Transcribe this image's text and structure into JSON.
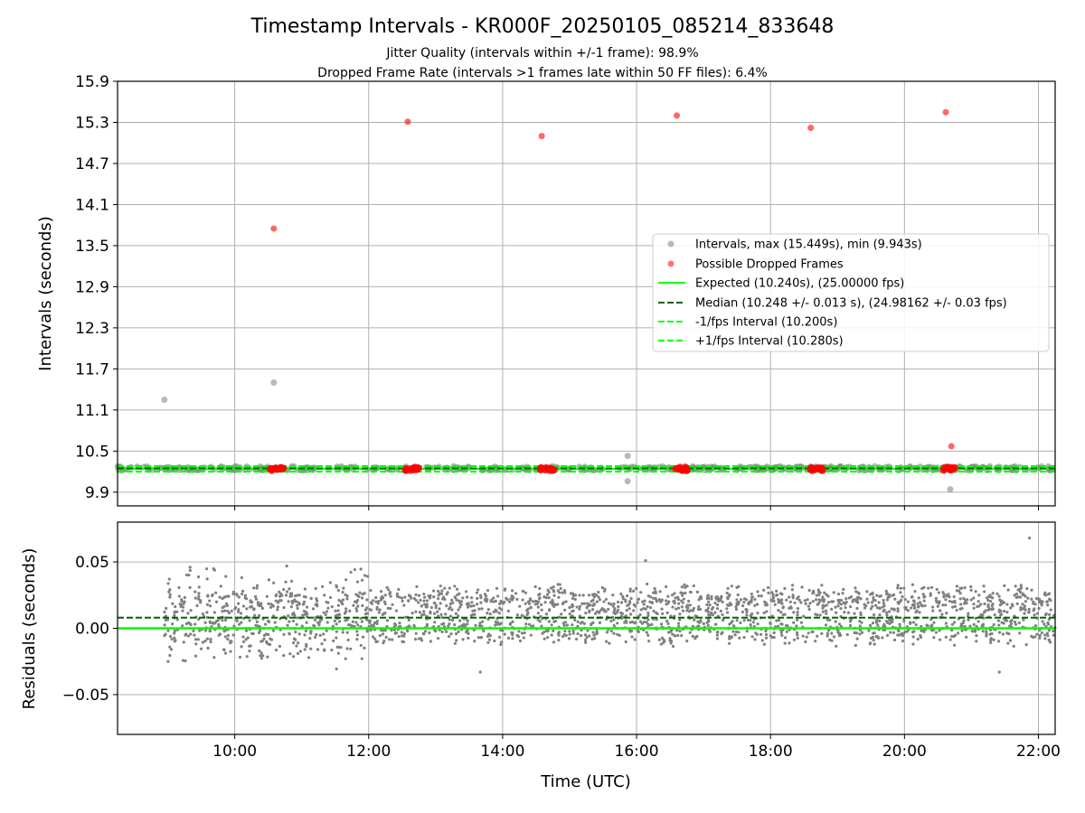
{
  "title": "Timestamp Intervals - KR000F_20250105_085214_833648",
  "subtitle_lines": [
    "Jitter Quality (intervals within +/-1 frame): 98.9%",
    "Dropped Frame Rate (intervals >1 frames late within 50 FF files): 6.4%"
  ],
  "colors": {
    "interval_points": "#808080",
    "dropped_points": "#ff0000",
    "expected_line": "#00ff00",
    "median_line": "#006400",
    "band_lines": "#00ff00",
    "grid": "#b0b0b0"
  },
  "chart_data": [
    {
      "type": "scatter",
      "ylabel": "Intervals (seconds)",
      "xlabel": "",
      "x_unit": "time (UTC)",
      "xlim": [
        "08:15",
        "22:15"
      ],
      "ylim": [
        9.7,
        15.9
      ],
      "y_ticks": [
        "15.9",
        "15.3",
        "14.7",
        "14.1",
        "13.5",
        "12.9",
        "12.3",
        "11.7",
        "11.1",
        "10.5",
        "9.9"
      ],
      "grid": true,
      "legend_position": "center-right",
      "legend": [
        "Intervals, max (15.449s), min (9.943s)",
        "Possible Dropped Frames",
        "Expected (10.240s), (25.00000 fps)",
        "Median (10.248 +/- 0.013 s), (24.98162 +/- 0.03 fps)",
        "-1/fps Interval (10.200s)",
        "+1/fps Interval (10.280s)"
      ],
      "series": [
        {
          "name": "Intervals, max (15.449s), min (9.943s)",
          "kind": "points",
          "x": [
            "08:57",
            "10:35",
            "15:52",
            "15:52",
            "20:41"
          ],
          "y": [
            11.25,
            11.5,
            10.43,
            10.06,
            9.943
          ],
          "baseline_band": {
            "x_range": [
              "08:15",
              "22:15"
            ],
            "y_center": 10.248,
            "y_spread": 0.03
          }
        },
        {
          "name": "Possible Dropped Frames",
          "kind": "points",
          "x": [
            "10:35",
            "12:35",
            "14:35",
            "16:36",
            "18:36",
            "20:37",
            "20:42"
          ],
          "y": [
            13.75,
            15.31,
            15.1,
            15.4,
            15.22,
            15.449,
            10.57
          ],
          "clusters_near_baseline": [
            "10:38",
            "12:39",
            "14:40",
            "16:40",
            "18:41",
            "20:40"
          ]
        },
        {
          "name": "Expected (10.240s), (25.00000 fps)",
          "kind": "hline",
          "y": 10.24
        },
        {
          "name": "Median (10.248 +/- 0.013 s), (24.98162 +/- 0.03 fps)",
          "kind": "hline",
          "y": 10.248
        },
        {
          "name": "-1/fps Interval (10.200s)",
          "kind": "hline",
          "y": 10.2
        },
        {
          "name": "+1/fps Interval (10.280s)",
          "kind": "hline",
          "y": 10.28
        }
      ]
    },
    {
      "type": "scatter",
      "ylabel": "Residuals (seconds)",
      "xlabel": "Time (UTC)",
      "xlim": [
        "08:15",
        "22:15"
      ],
      "ylim": [
        -0.08,
        0.08
      ],
      "y_ticks": [
        "0.05",
        "0.00",
        "−0.05"
      ],
      "x_ticks": [
        "10:00",
        "12:00",
        "14:00",
        "16:00",
        "18:00",
        "20:00",
        "22:00"
      ],
      "grid": true,
      "series": [
        {
          "name": "residuals",
          "kind": "points",
          "note_levels": [
            0.02,
            0.0
          ],
          "x_range": [
            "08:57",
            "22:15"
          ],
          "y_range": [
            -0.033,
            0.068
          ],
          "outliers": [
            {
              "x": "21:52",
              "y": 0.068
            },
            {
              "x": "16:08",
              "y": 0.051
            },
            {
              "x": "09:20",
              "y": 0.046
            },
            {
              "x": "13:40",
              "y": -0.033
            },
            {
              "x": "21:25",
              "y": -0.033
            }
          ]
        },
        {
          "name": "expected",
          "kind": "hline",
          "y": 0.0
        },
        {
          "name": "median",
          "kind": "hline",
          "y": 0.008
        }
      ]
    }
  ]
}
